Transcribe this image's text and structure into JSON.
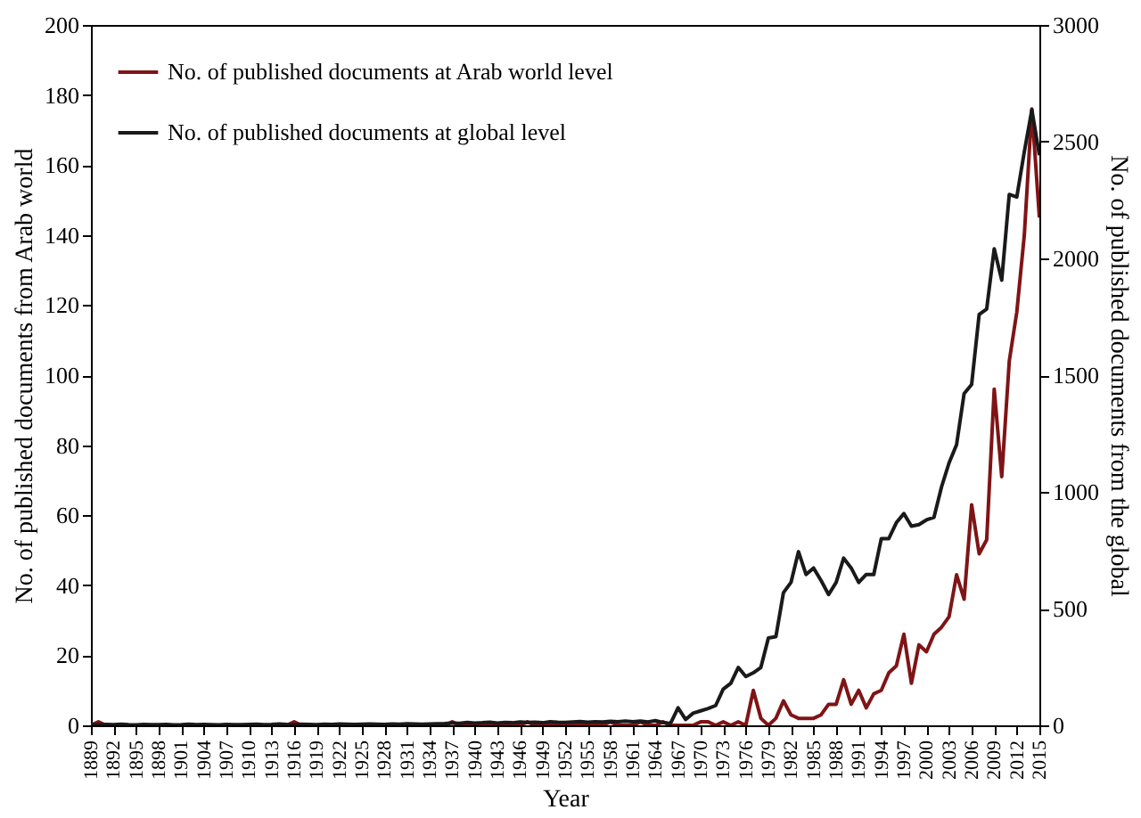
{
  "chart_data": {
    "type": "line",
    "xlabel": "Year",
    "ylabel": "No. of published documents from Arab world",
    "y2label": "No. of published documents from the global",
    "legend": "top left",
    "marker": "none",
    "line_style": "solid",
    "x": [
      1889,
      1890,
      1891,
      1892,
      1893,
      1894,
      1895,
      1896,
      1897,
      1898,
      1899,
      1900,
      1901,
      1902,
      1903,
      1904,
      1905,
      1906,
      1907,
      1908,
      1909,
      1910,
      1911,
      1912,
      1913,
      1914,
      1915,
      1916,
      1917,
      1918,
      1919,
      1920,
      1921,
      1922,
      1923,
      1924,
      1925,
      1926,
      1927,
      1928,
      1929,
      1930,
      1931,
      1932,
      1933,
      1934,
      1935,
      1936,
      1937,
      1938,
      1939,
      1940,
      1941,
      1942,
      1943,
      1944,
      1945,
      1946,
      1947,
      1948,
      1949,
      1950,
      1951,
      1952,
      1953,
      1954,
      1955,
      1956,
      1957,
      1958,
      1959,
      1960,
      1961,
      1962,
      1963,
      1964,
      1965,
      1966,
      1967,
      1968,
      1969,
      1970,
      1971,
      1972,
      1973,
      1974,
      1975,
      1976,
      1977,
      1978,
      1979,
      1980,
      1981,
      1982,
      1983,
      1984,
      1985,
      1986,
      1987,
      1988,
      1989,
      1990,
      1991,
      1992,
      1993,
      1994,
      1995,
      1996,
      1997,
      1998,
      1999,
      2000,
      2001,
      2002,
      2003,
      2004,
      2005,
      2006,
      2007,
      2008,
      2009,
      2010,
      2011,
      2012,
      2013,
      2014,
      2015
    ],
    "xlim": [
      1889,
      2015
    ],
    "xticks": [
      1889,
      1892,
      1895,
      1898,
      1901,
      1904,
      1907,
      1910,
      1913,
      1916,
      1919,
      1922,
      1925,
      1928,
      1931,
      1934,
      1937,
      1940,
      1943,
      1946,
      1949,
      1952,
      1955,
      1958,
      1961,
      1964,
      1967,
      1970,
      1973,
      1976,
      1979,
      1982,
      1985,
      1988,
      1991,
      1994,
      1997,
      2000,
      2003,
      2006,
      2009,
      2012,
      2015
    ],
    "ylim": [
      0,
      200
    ],
    "yticks": [
      0,
      20,
      40,
      60,
      80,
      100,
      120,
      140,
      160,
      180,
      200
    ],
    "y2lim": [
      0,
      3000
    ],
    "y2ticks": [
      0,
      500,
      1000,
      1500,
      2000,
      2500,
      3000
    ],
    "series": [
      {
        "name": "No. of published documents at Arab world level",
        "color": "#7f1416",
        "values": [
          0,
          1,
          0,
          0,
          0,
          0,
          0,
          0,
          0,
          0,
          0,
          0,
          0,
          0,
          0,
          0,
          0,
          0,
          0,
          0,
          0,
          0,
          0,
          0,
          0,
          0,
          0,
          1,
          0,
          0,
          0,
          0,
          0,
          0,
          0,
          0,
          0,
          0,
          0,
          0,
          0,
          0,
          0,
          0,
          0,
          0,
          0,
          0,
          1,
          0,
          0,
          0,
          0,
          0,
          0,
          0,
          0,
          0,
          1,
          0,
          0,
          0,
          0,
          0,
          0,
          0,
          0,
          0,
          0,
          1,
          0,
          0,
          0,
          1,
          0,
          0,
          1,
          0,
          0,
          0,
          0,
          1,
          1,
          0,
          1,
          0,
          1,
          0,
          10,
          2,
          0,
          2,
          7,
          3,
          2,
          2,
          2,
          3,
          6,
          6,
          13,
          6,
          10,
          5,
          9,
          10,
          15,
          17,
          26,
          12,
          23,
          21,
          26,
          28,
          31,
          43,
          36,
          63,
          49,
          53,
          96,
          71,
          104,
          118,
          140,
          176,
          145
        ]
      },
      {
        "name": "No. of published documents at global level",
        "color": "#1a1a1a",
        "axis": "y2",
        "values": [
          3,
          2,
          4,
          3,
          5,
          3,
          2,
          4,
          3,
          3,
          4,
          2,
          3,
          5,
          3,
          4,
          3,
          2,
          4,
          3,
          3,
          4,
          5,
          3,
          4,
          6,
          4,
          3,
          5,
          4,
          3,
          5,
          4,
          6,
          5,
          4,
          5,
          6,
          5,
          4,
          6,
          5,
          7,
          6,
          5,
          6,
          7,
          8,
          10,
          9,
          12,
          10,
          11,
          13,
          10,
          12,
          11,
          14,
          12,
          13,
          11,
          15,
          13,
          12,
          14,
          16,
          13,
          15,
          14,
          17,
          15,
          18,
          15,
          18,
          14,
          20,
          12,
          8,
          75,
          25,
          52,
          62,
          72,
          85,
          155,
          180,
          248,
          209,
          225,
          248,
          374,
          380,
          568,
          612,
          744,
          646,
          674,
          620,
          560,
          612,
          716,
          674,
          612,
          646,
          646,
          800,
          800,
          868,
          907,
          853,
          860,
          880,
          891,
          1021,
          1124,
          1202,
          1421,
          1460,
          1760,
          1783,
          2041,
          1907,
          2274,
          2263,
          2457,
          2636,
          2442
        ]
      }
    ]
  }
}
